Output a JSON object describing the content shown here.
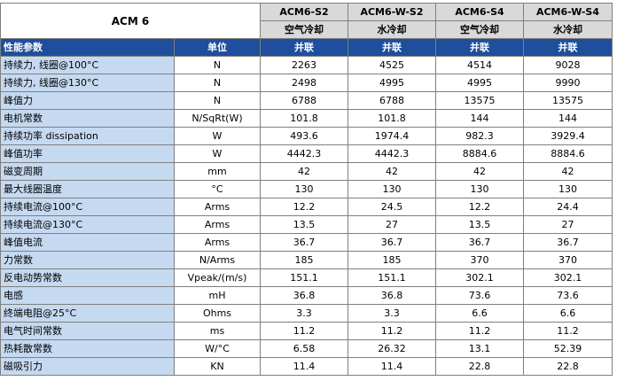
{
  "table": {
    "title": "ACM 6",
    "models": [
      "ACM6-S2",
      "ACM6-W-S2",
      "ACM6-S4",
      "ACM6-W-S4"
    ],
    "cooling": [
      "空气冷却",
      "水冷却",
      "空气冷却",
      "水冷却"
    ],
    "param_header": "性能参数",
    "unit_header": "单位",
    "connection": [
      "并联",
      "并联",
      "并联",
      "并联"
    ],
    "rows": [
      {
        "label": "持续力, 线圈@100°C",
        "unit": "N",
        "values": [
          "2263",
          "4525",
          "4514",
          "9028"
        ]
      },
      {
        "label": "持续力, 线圈@130°C",
        "unit": "N",
        "values": [
          "2498",
          "4995",
          "4995",
          "9990"
        ]
      },
      {
        "label": "峰值力",
        "unit": "N",
        "values": [
          "6788",
          "6788",
          "13575",
          "13575"
        ]
      },
      {
        "label": "电机常数",
        "unit": "N/SqRt(W)",
        "values": [
          "101.8",
          "101.8",
          "144",
          "144"
        ]
      },
      {
        "label": "持续功率 dissipation",
        "unit": "W",
        "values": [
          "493.6",
          "1974.4",
          "982.3",
          "3929.4"
        ]
      },
      {
        "label": "峰值功率",
        "unit": "W",
        "values": [
          "4442.3",
          "4442.3",
          "8884.6",
          "8884.6"
        ]
      },
      {
        "label": "磁变周期",
        "unit": "mm",
        "values": [
          "42",
          "42",
          "42",
          "42"
        ]
      },
      {
        "label": "最大线圈温度",
        "unit": "°C",
        "values": [
          "130",
          "130",
          "130",
          "130"
        ]
      },
      {
        "label": "持续电流@100°C",
        "unit": "Arms",
        "values": [
          "12.2",
          "24.5",
          "12.2",
          "24.4"
        ]
      },
      {
        "label": "持续电流@130°C",
        "unit": "Arms",
        "values": [
          "13.5",
          "27",
          "13.5",
          "27"
        ]
      },
      {
        "label": "峰值电流",
        "unit": "Arms",
        "values": [
          "36.7",
          "36.7",
          "36.7",
          "36.7"
        ]
      },
      {
        "label": "力常数",
        "unit": "N/Arms",
        "values": [
          "185",
          "185",
          "370",
          "370"
        ]
      },
      {
        "label": "反电动势常数",
        "unit": "Vpeak/(m/s)",
        "values": [
          "151.1",
          "151.1",
          "302.1",
          "302.1"
        ]
      },
      {
        "label": "电感",
        "unit": "mH",
        "values": [
          "36.8",
          "36.8",
          "73.6",
          "73.6"
        ]
      },
      {
        "label": "终端电阻@25°C",
        "unit": "Ohms",
        "values": [
          "3.3",
          "3.3",
          "6.6",
          "6.6"
        ]
      },
      {
        "label": "电气时间常数",
        "unit": "ms",
        "values": [
          "11.2",
          "11.2",
          "11.2",
          "11.2"
        ]
      },
      {
        "label": "热耗散常数",
        "unit": "W/°C",
        "values": [
          "6.58",
          "26.32",
          "13.1",
          "52.39"
        ]
      },
      {
        "label": "磁吸引力",
        "unit": "KN",
        "values": [
          "11.4",
          "11.4",
          "22.8",
          "22.8"
        ]
      }
    ]
  },
  "colors": {
    "label_fill": "#c5d9f1",
    "header_fill": "#1f4e9c",
    "model_fill": "#d9d9d9",
    "border": "#7f7f7f"
  }
}
